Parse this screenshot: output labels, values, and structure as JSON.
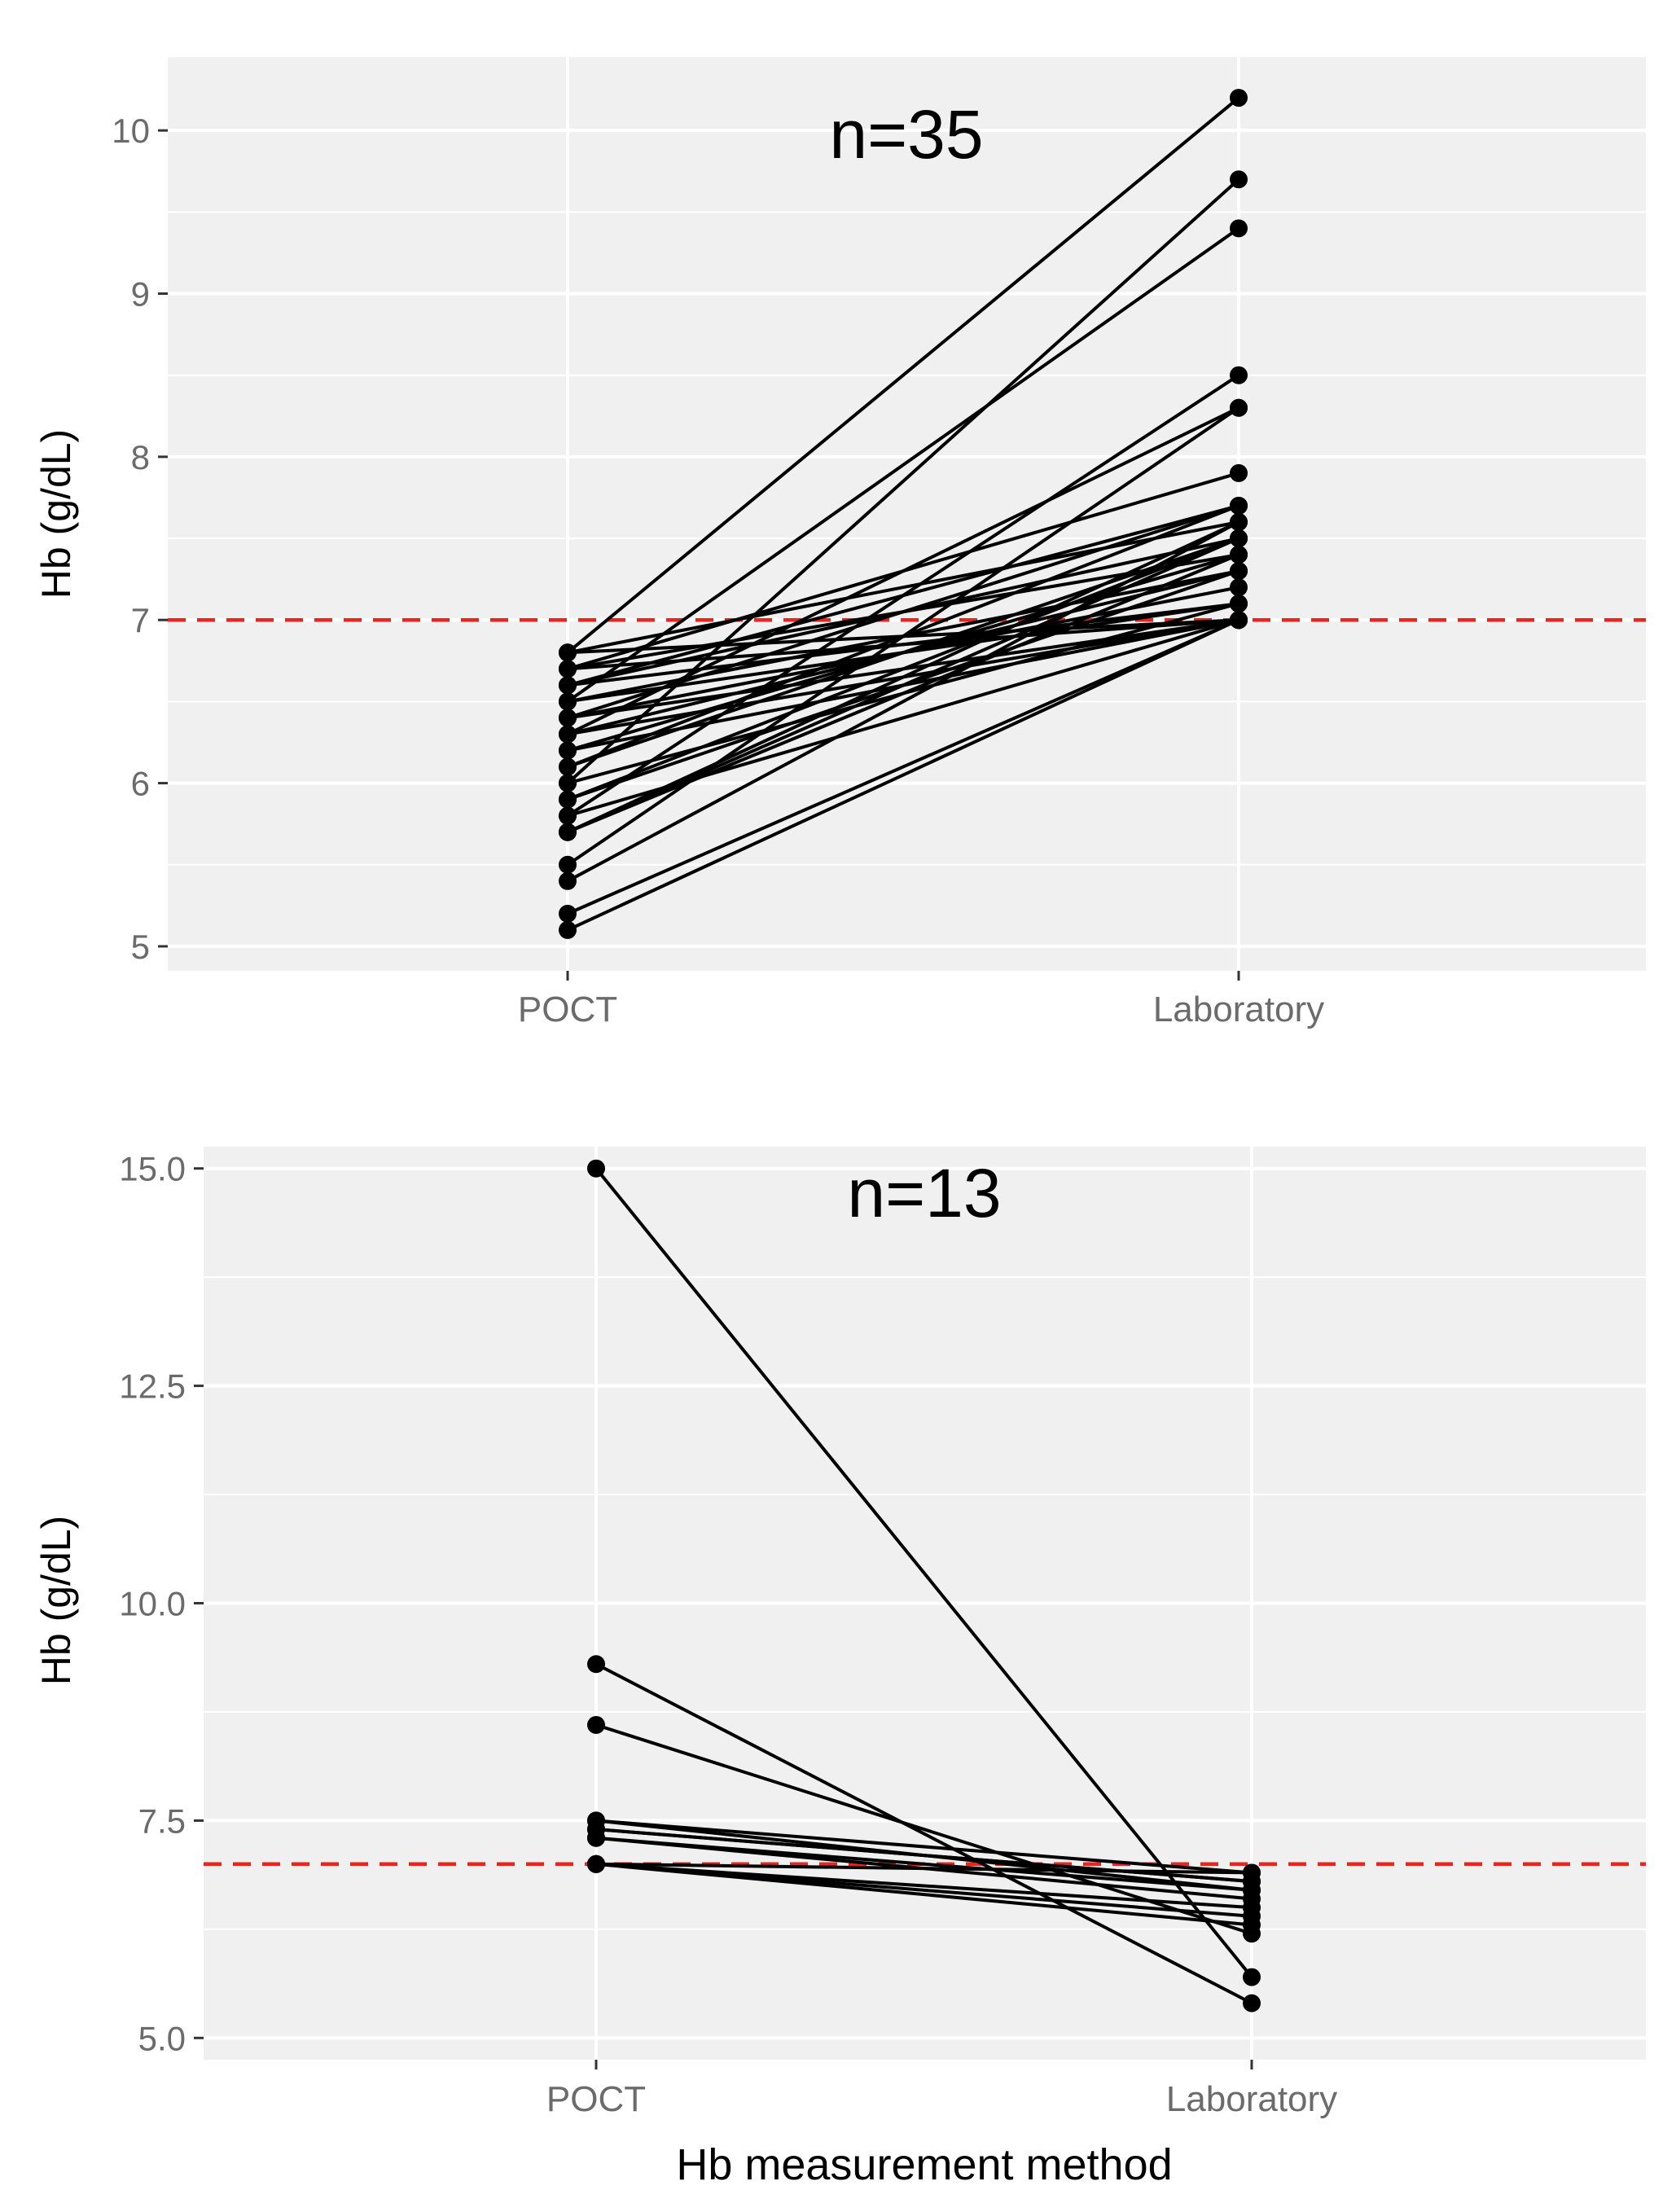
{
  "colors": {
    "panel_bg": "#f0f0f0",
    "grid_major": "#ffffff",
    "line": "#000000",
    "threshold": "#e8261f",
    "tick_text": "#6b6b6b",
    "label_text": "#000000"
  },
  "chart_data": [
    {
      "type": "line",
      "annotation": "n=35",
      "categories": [
        "POCT",
        "Laboratory"
      ],
      "ylabel": "Hb (g/dL)",
      "xlabel": "",
      "ylim": [
        4.85,
        10.45
      ],
      "yticks": [
        5,
        6,
        7,
        8,
        9,
        10
      ],
      "ytick_labels": [
        "5",
        "6",
        "7",
        "8",
        "9",
        "10"
      ],
      "minor_grid": [
        5.5,
        6.5,
        7.5,
        8.5,
        9.5
      ],
      "threshold": 7,
      "pairs": [
        [
          6.8,
          10.2
        ],
        [
          6.0,
          9.7
        ],
        [
          6.5,
          9.4
        ],
        [
          5.8,
          8.5
        ],
        [
          6.3,
          8.3
        ],
        [
          5.5,
          8.3
        ],
        [
          6.7,
          7.9
        ],
        [
          6.1,
          7.7
        ],
        [
          6.4,
          7.7
        ],
        [
          5.7,
          7.6
        ],
        [
          6.8,
          7.6
        ],
        [
          6.6,
          7.5
        ],
        [
          5.9,
          7.5
        ],
        [
          6.2,
          7.4
        ],
        [
          6.7,
          7.4
        ],
        [
          5.4,
          7.6
        ],
        [
          6.3,
          7.3
        ],
        [
          6.5,
          7.3
        ],
        [
          5.7,
          7.5
        ],
        [
          6.6,
          7.1
        ],
        [
          6.0,
          7.1
        ],
        [
          6.8,
          7.0
        ],
        [
          5.8,
          7.0
        ],
        [
          5.2,
          7.0
        ],
        [
          5.1,
          7.0
        ],
        [
          6.4,
          7.0
        ],
        [
          6.7,
          7.0
        ],
        [
          6.5,
          7.1
        ],
        [
          6.3,
          7.0
        ],
        [
          5.9,
          7.3
        ],
        [
          6.6,
          7.7
        ],
        [
          6.1,
          7.5
        ],
        [
          6.4,
          7.2
        ],
        [
          5.7,
          7.4
        ],
        [
          6.2,
          7.0
        ]
      ]
    },
    {
      "type": "line",
      "annotation": "n=13",
      "categories": [
        "POCT",
        "Laboratory"
      ],
      "ylabel": "Hb (g/dL)",
      "xlabel": "Hb measurement method",
      "ylim": [
        4.75,
        15.25
      ],
      "yticks": [
        5.0,
        7.5,
        10.0,
        12.5,
        15.0
      ],
      "ytick_labels": [
        "5.0",
        "7.5",
        "10.0",
        "12.5",
        "15.0"
      ],
      "minor_grid": [
        6.25,
        8.75,
        11.25,
        13.75
      ],
      "threshold": 7,
      "pairs": [
        [
          15.0,
          5.7
        ],
        [
          9.3,
          5.4
        ],
        [
          8.6,
          6.2
        ],
        [
          7.5,
          6.9
        ],
        [
          7.4,
          6.8
        ],
        [
          7.3,
          6.6
        ],
        [
          7.5,
          6.7
        ],
        [
          7.0,
          6.4
        ],
        [
          7.0,
          6.3
        ],
        [
          7.0,
          6.5
        ],
        [
          7.0,
          6.9
        ],
        [
          7.4,
          6.8
        ],
        [
          7.3,
          6.7
        ]
      ]
    }
  ]
}
